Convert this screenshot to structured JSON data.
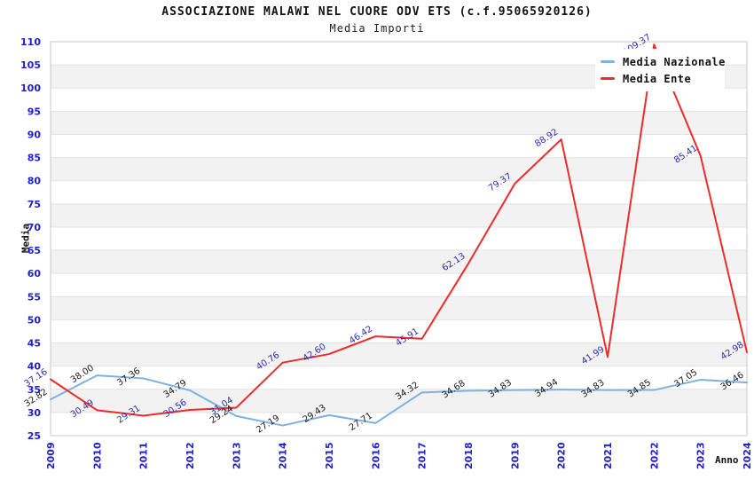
{
  "chart": {
    "title": "ASSOCIAZIONE MALAWI NEL CUORE ODV ETS (c.f.95065920126)",
    "subtitle": "Media Importi",
    "ylabel": "Media",
    "xlabel": "Anno"
  },
  "chart_data": {
    "type": "line",
    "x": [
      2009,
      2010,
      2011,
      2012,
      2013,
      2014,
      2015,
      2016,
      2017,
      2018,
      2019,
      2020,
      2021,
      2022,
      2023,
      2024
    ],
    "series": [
      {
        "name": "Media Nazionale",
        "color": "#7FB1E0",
        "label_color": "#1a1a1a",
        "values": [
          32.82,
          38.0,
          37.36,
          34.79,
          29.24,
          27.19,
          29.43,
          27.71,
          34.32,
          34.68,
          34.83,
          34.94,
          34.83,
          34.85,
          37.05,
          36.46
        ]
      },
      {
        "name": "Media Ente",
        "color": "#ED2B2B",
        "label_color": "#2D2DB4",
        "values": [
          37.16,
          30.49,
          29.31,
          30.56,
          31.04,
          40.76,
          42.6,
          46.42,
          45.91,
          62.13,
          79.37,
          88.92,
          41.99,
          109.37,
          85.41,
          42.98
        ]
      }
    ],
    "ylim": [
      25,
      110
    ],
    "ytick_step": 5,
    "point_labels": "2-decimals, rotated",
    "legend_position": "top-right",
    "grid": "horizontal-bands",
    "style": {
      "tick_color": "#2020CF",
      "band_color": "#F2F2F2",
      "gridline_color": "#E2E2E2",
      "border_color": "#C8C8C8"
    }
  }
}
